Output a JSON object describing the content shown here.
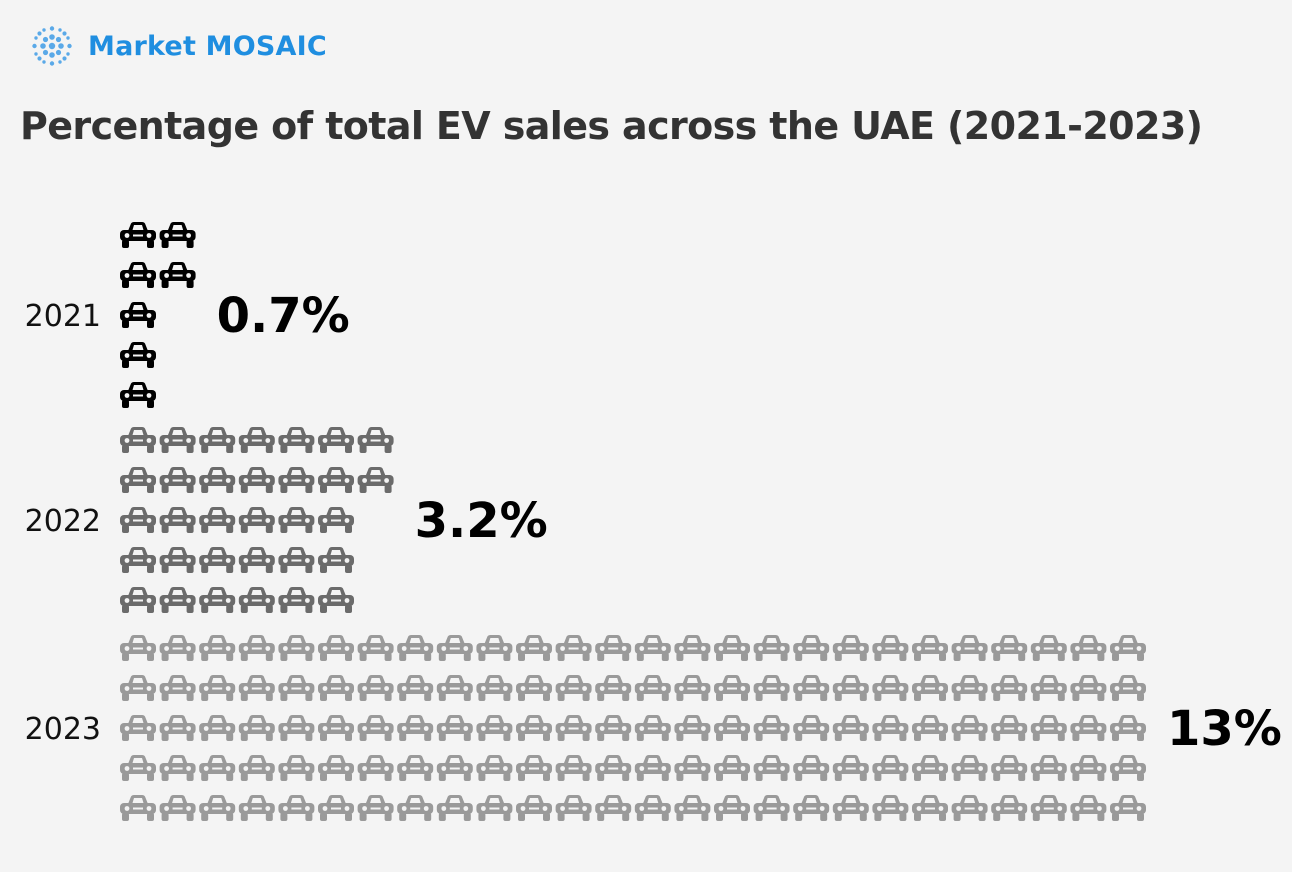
{
  "brand": {
    "name": "Market MOSAIC",
    "color": "#1f8ee0"
  },
  "colors": {
    "background": "#f4f4f4",
    "title": "#333333"
  },
  "chart_data": {
    "type": "pictogram",
    "title": "Percentage of total EV sales across the UAE (2021-2023)",
    "icon": "car-icon",
    "categories": [
      "2021",
      "2022",
      "2023"
    ],
    "values": [
      0.7,
      3.2,
      13
    ],
    "value_labels": [
      "0.7%",
      "3.2%",
      "13%"
    ],
    "icon_rows": [
      [
        2,
        2,
        1,
        1,
        1
      ],
      [
        7,
        7,
        6,
        6,
        6
      ],
      [
        26,
        26,
        26,
        26,
        26
      ]
    ],
    "icon_colors": [
      "#000000",
      "#6b6b6b",
      "#9a9a9a"
    ],
    "xlabel": "",
    "ylabel": "",
    "legend": "none"
  }
}
